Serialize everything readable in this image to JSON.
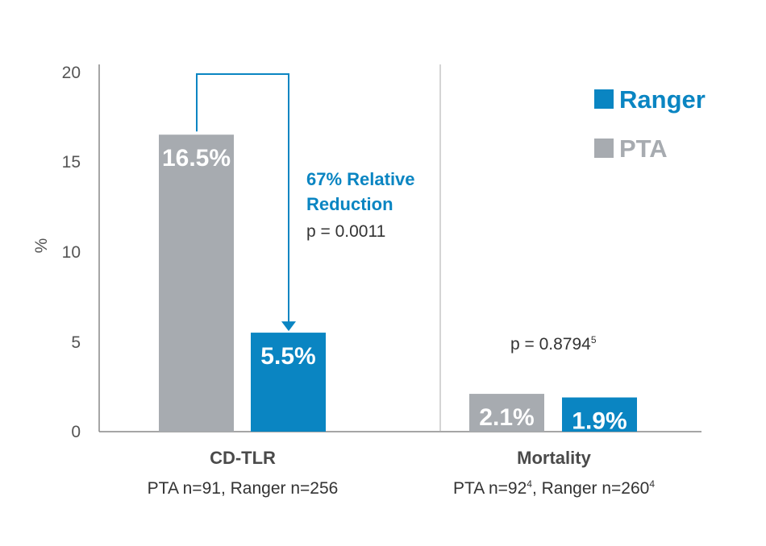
{
  "colors": {
    "ranger": "#0a85c2",
    "pta": "#a7abb0",
    "axis": "#888888"
  },
  "chart_data": {
    "type": "bar",
    "ylabel": "%",
    "ylim": [
      0,
      20
    ],
    "yticks": [
      "0",
      "5",
      "10",
      "15",
      "20"
    ],
    "legend": [
      {
        "name": "Ranger",
        "color": "#0a85c2"
      },
      {
        "name": "PTA",
        "color": "#a7abb0"
      }
    ],
    "groups": [
      {
        "name": "CD-TLR",
        "subtitle": {
          "pta_label": "PTA n=91",
          "sep": ", ",
          "ranger_label": "Ranger n=256"
        },
        "bars": [
          {
            "series": "PTA",
            "value": 16.5,
            "label": "16.5%"
          },
          {
            "series": "Ranger",
            "value": 5.5,
            "label": "5.5%"
          }
        ],
        "annotation": {
          "line1": "67% Relative",
          "line2": "Reduction",
          "p": "p = 0.0011"
        }
      },
      {
        "name": "Mortality",
        "subtitle": {
          "pta_label": "PTA n=92",
          "pta_sup": "4",
          "sep": ", ",
          "ranger_label": "Ranger n=260",
          "ranger_sup": "4"
        },
        "bars": [
          {
            "series": "PTA",
            "value": 2.1,
            "label": "2.1%"
          },
          {
            "series": "Ranger",
            "value": 1.9,
            "label": "1.9%"
          }
        ],
        "pvalue": {
          "text": "p = 0.8794",
          "sup": "5"
        }
      }
    ]
  }
}
